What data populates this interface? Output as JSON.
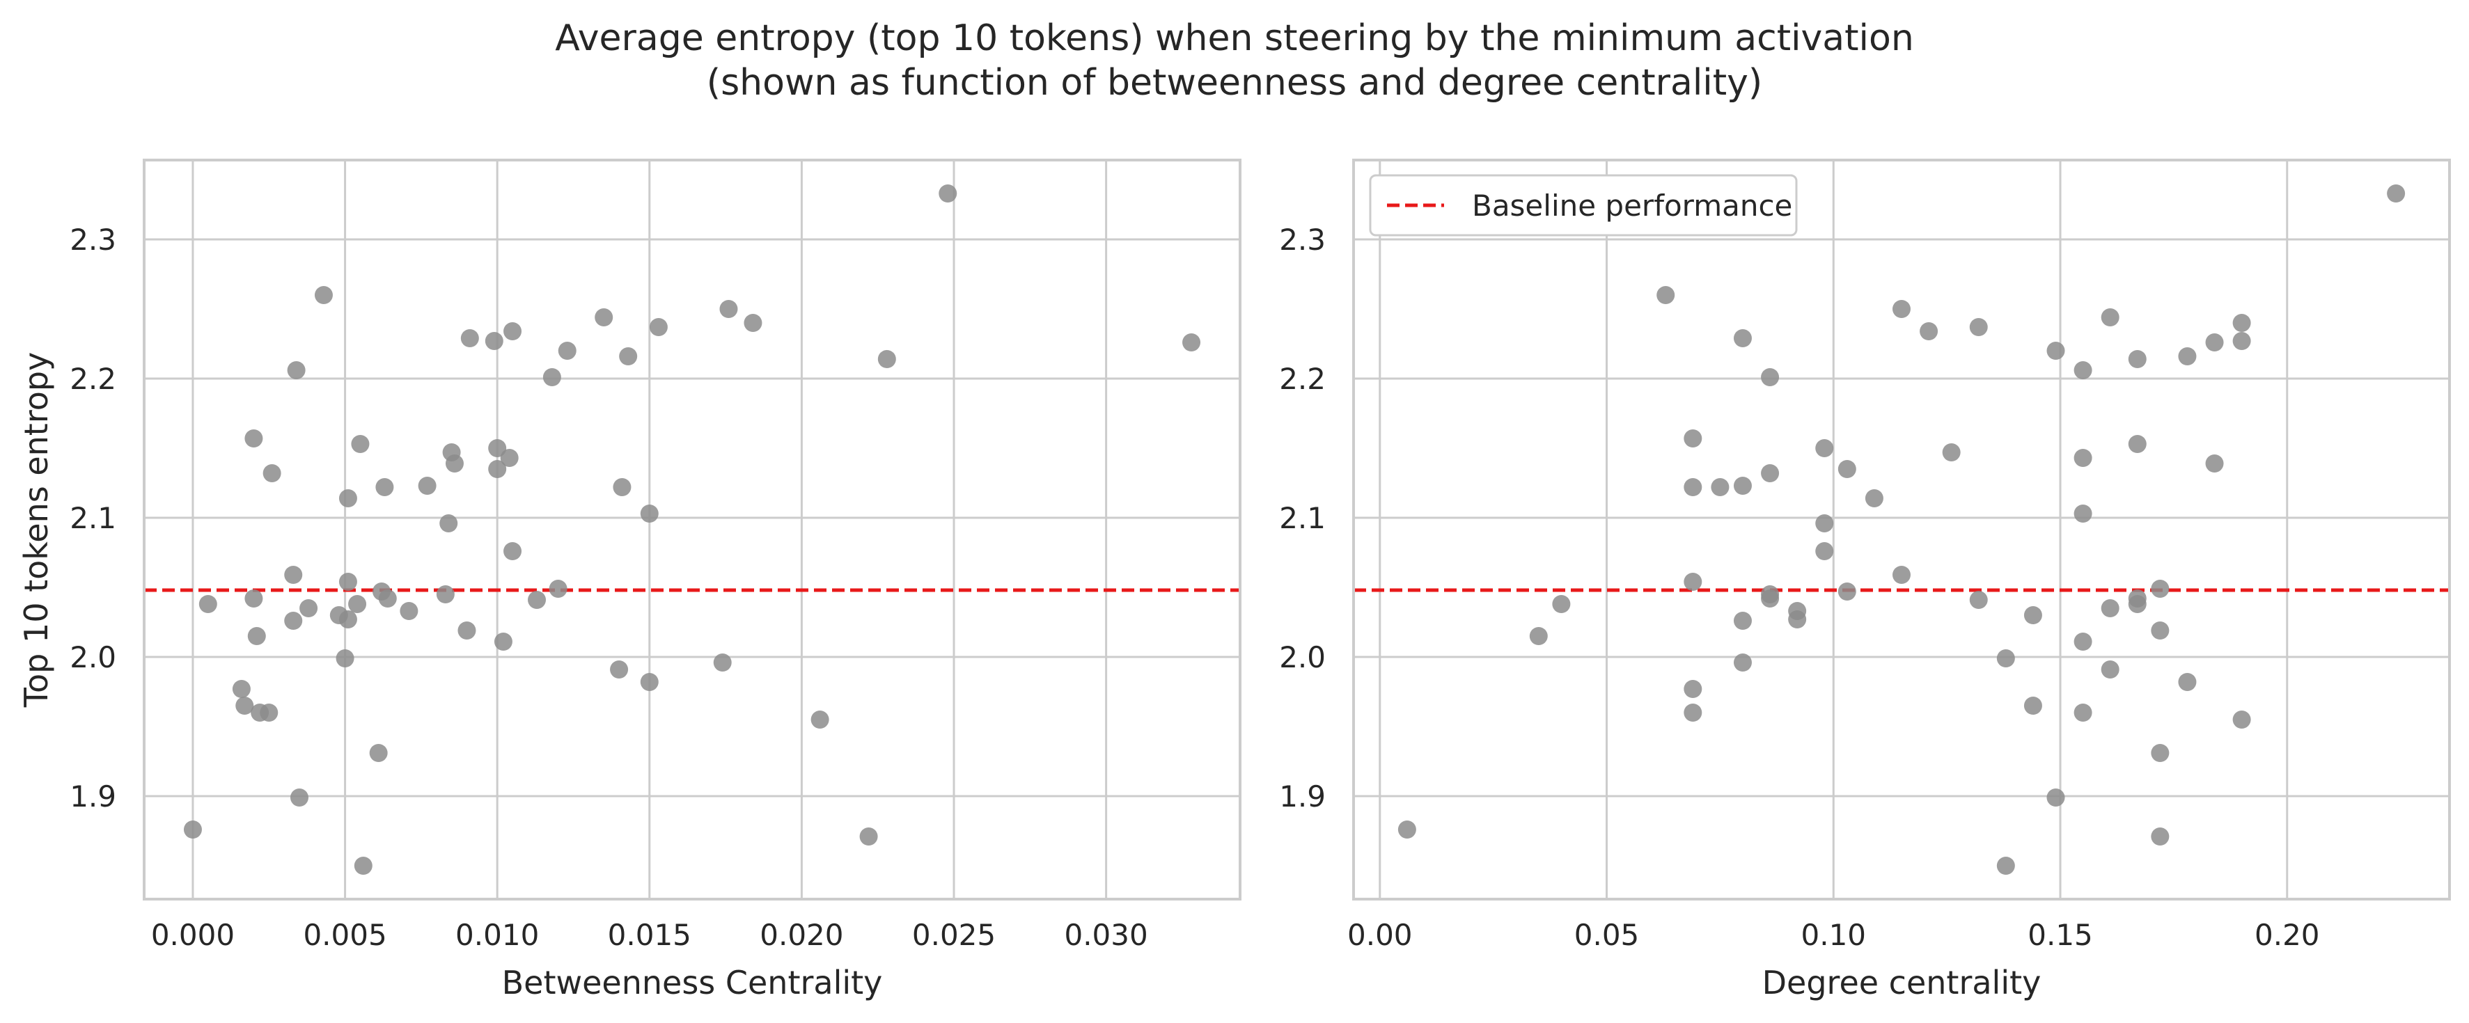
{
  "title": {
    "line1": "Average entropy (top 10 tokens) when steering by the minimum activation",
    "line2": "(shown as function of betweenness and degree centrality)"
  },
  "colors": {
    "points": "#8c8c8c",
    "baseline": "#e8191a",
    "grid": "#cccccc",
    "axes_edge": "#cccccc"
  },
  "chart_data": [
    {
      "type": "scatter",
      "xlabel": "Betweenness Centrality",
      "ylabel": "Top 10 tokens entropy",
      "xlim": [
        -0.0016,
        0.0344
      ],
      "ylim": [
        1.826,
        2.357
      ],
      "xticks": [
        0.0,
        0.005,
        0.01,
        0.015,
        0.02,
        0.025,
        0.03
      ],
      "xtick_labels": [
        "0.000",
        "0.005",
        "0.010",
        "0.015",
        "0.020",
        "0.025",
        "0.030"
      ],
      "yticks": [
        1.9,
        2.0,
        2.1,
        2.2,
        2.3
      ],
      "ytick_labels": [
        "1.9",
        "2.0",
        "2.1",
        "2.2",
        "2.3"
      ],
      "grid": true,
      "baseline": 2.048,
      "x": [
        0.0,
        0.0005,
        0.0016,
        0.0017,
        0.002,
        0.002,
        0.0021,
        0.0022,
        0.0025,
        0.0026,
        0.0033,
        0.0033,
        0.0034,
        0.0035,
        0.0038,
        0.0043,
        0.0048,
        0.005,
        0.0051,
        0.0051,
        0.0051,
        0.0054,
        0.0055,
        0.0056,
        0.0061,
        0.0062,
        0.0063,
        0.0064,
        0.0071,
        0.0077,
        0.0083,
        0.0084,
        0.0085,
        0.0086,
        0.009,
        0.0091,
        0.0099,
        0.01,
        0.01,
        0.0102,
        0.0104,
        0.0105,
        0.0105,
        0.0113,
        0.0118,
        0.012,
        0.0123,
        0.0135,
        0.014,
        0.0141,
        0.0143,
        0.015,
        0.015,
        0.0153,
        0.0174,
        0.0176,
        0.0184,
        0.0206,
        0.0222,
        0.0228,
        0.0248,
        0.0328
      ],
      "y": [
        1.876,
        2.038,
        1.977,
        1.965,
        2.042,
        2.157,
        2.015,
        1.96,
        1.96,
        2.132,
        2.059,
        2.026,
        2.206,
        1.899,
        2.035,
        2.26,
        2.03,
        1.999,
        2.027,
        2.054,
        2.114,
        2.038,
        2.153,
        1.85,
        1.931,
        2.047,
        2.122,
        2.042,
        2.033,
        2.123,
        2.045,
        2.096,
        2.147,
        2.139,
        2.019,
        2.229,
        2.227,
        2.135,
        2.15,
        2.011,
        2.143,
        2.076,
        2.234,
        2.041,
        2.201,
        2.049,
        2.22,
        2.244,
        1.991,
        2.122,
        2.216,
        1.982,
        2.103,
        2.237,
        1.996,
        2.25,
        2.24,
        1.955,
        1.871,
        2.214,
        2.333,
        2.226
      ]
    },
    {
      "type": "scatter",
      "xlabel": "Degree centrality",
      "ylabel": "",
      "xlim": [
        -0.0058,
        0.2358
      ],
      "ylim": [
        1.826,
        2.357
      ],
      "xticks": [
        0.0,
        0.05,
        0.1,
        0.15,
        0.2
      ],
      "xtick_labels": [
        "0.00",
        "0.05",
        "0.10",
        "0.15",
        "0.20"
      ],
      "yticks": [
        1.9,
        2.0,
        2.1,
        2.2,
        2.3
      ],
      "ytick_labels": [
        "1.9",
        "2.0",
        "2.1",
        "2.2",
        "2.3"
      ],
      "grid": true,
      "baseline": 2.048,
      "legend": {
        "position": "top-left",
        "entries": [
          {
            "label": "Baseline performance",
            "style": "dashed red line"
          }
        ]
      },
      "x": [
        0.006,
        0.035,
        0.04,
        0.063,
        0.069,
        0.069,
        0.069,
        0.069,
        0.069,
        0.075,
        0.08,
        0.08,
        0.08,
        0.08,
        0.086,
        0.086,
        0.086,
        0.086,
        0.092,
        0.092,
        0.098,
        0.098,
        0.098,
        0.103,
        0.103,
        0.109,
        0.115,
        0.115,
        0.121,
        0.126,
        0.132,
        0.132,
        0.138,
        0.138,
        0.144,
        0.144,
        0.149,
        0.149,
        0.155,
        0.155,
        0.155,
        0.155,
        0.155,
        0.161,
        0.161,
        0.161,
        0.167,
        0.167,
        0.167,
        0.167,
        0.172,
        0.172,
        0.172,
        0.172,
        0.178,
        0.178,
        0.184,
        0.184,
        0.19,
        0.19,
        0.19,
        0.224
      ],
      "y": [
        1.876,
        2.015,
        2.038,
        2.26,
        1.96,
        1.977,
        2.054,
        2.122,
        2.157,
        2.122,
        1.996,
        2.026,
        2.123,
        2.229,
        2.042,
        2.045,
        2.132,
        2.201,
        2.027,
        2.033,
        2.076,
        2.096,
        2.15,
        2.047,
        2.135,
        2.114,
        2.059,
        2.25,
        2.234,
        2.147,
        2.041,
        2.237,
        1.85,
        1.999,
        1.965,
        2.03,
        1.899,
        2.22,
        1.96,
        2.011,
        2.103,
        2.143,
        2.206,
        1.991,
        2.035,
        2.244,
        2.038,
        2.042,
        2.153,
        2.214,
        1.871,
        1.931,
        2.019,
        2.049,
        1.982,
        2.216,
        2.139,
        2.226,
        1.955,
        2.227,
        2.24,
        2.333
      ]
    }
  ]
}
